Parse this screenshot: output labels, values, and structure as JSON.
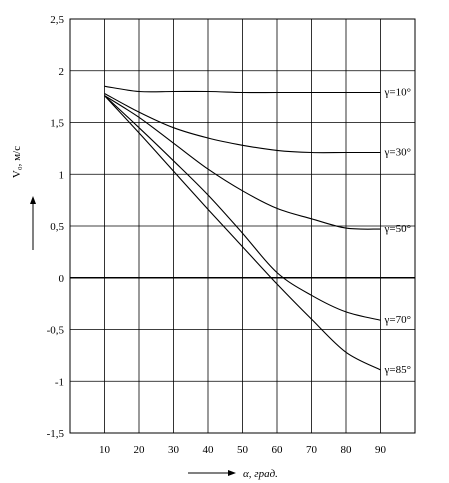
{
  "chart_data": {
    "type": "line",
    "title": "",
    "xlabel": "α, град.",
    "ylabel": "V₀, м/с",
    "xlim": [
      0,
      100
    ],
    "ylim": [
      -1.5,
      2.5
    ],
    "x_ticks": [
      "10",
      "20",
      "30",
      "40",
      "50",
      "60",
      "70",
      "80",
      "90"
    ],
    "y_ticks": [
      "2,5",
      "2",
      "1,5",
      "1",
      "0,5",
      "0",
      "-0,5",
      "-1",
      "-1,5"
    ],
    "grid": true,
    "series": [
      {
        "name": "γ=10°",
        "x": [
          10,
          20,
          30,
          40,
          50,
          60,
          70,
          80,
          90
        ],
        "y": [
          1.85,
          1.8,
          1.8,
          1.8,
          1.79,
          1.79,
          1.79,
          1.79,
          1.79
        ]
      },
      {
        "name": "γ=30°",
        "x": [
          10,
          20,
          30,
          40,
          50,
          60,
          70,
          80,
          90
        ],
        "y": [
          1.78,
          1.6,
          1.45,
          1.35,
          1.28,
          1.23,
          1.21,
          1.21,
          1.21
        ]
      },
      {
        "name": "γ=50°",
        "x": [
          10,
          20,
          30,
          40,
          50,
          60,
          70,
          80,
          90
        ],
        "y": [
          1.76,
          1.55,
          1.3,
          1.05,
          0.84,
          0.67,
          0.57,
          0.48,
          0.47
        ]
      },
      {
        "name": "γ=70°",
        "x": [
          10,
          20,
          30,
          40,
          50,
          60,
          70,
          80,
          90
        ],
        "y": [
          1.76,
          1.45,
          1.13,
          0.8,
          0.43,
          0.05,
          -0.17,
          -0.33,
          -0.41
        ]
      },
      {
        "name": "γ=85°",
        "x": [
          10,
          20,
          30,
          40,
          50,
          60,
          70,
          80,
          90
        ],
        "y": [
          1.76,
          1.4,
          1.03,
          0.66,
          0.3,
          -0.06,
          -0.4,
          -0.72,
          -0.89
        ]
      }
    ]
  }
}
